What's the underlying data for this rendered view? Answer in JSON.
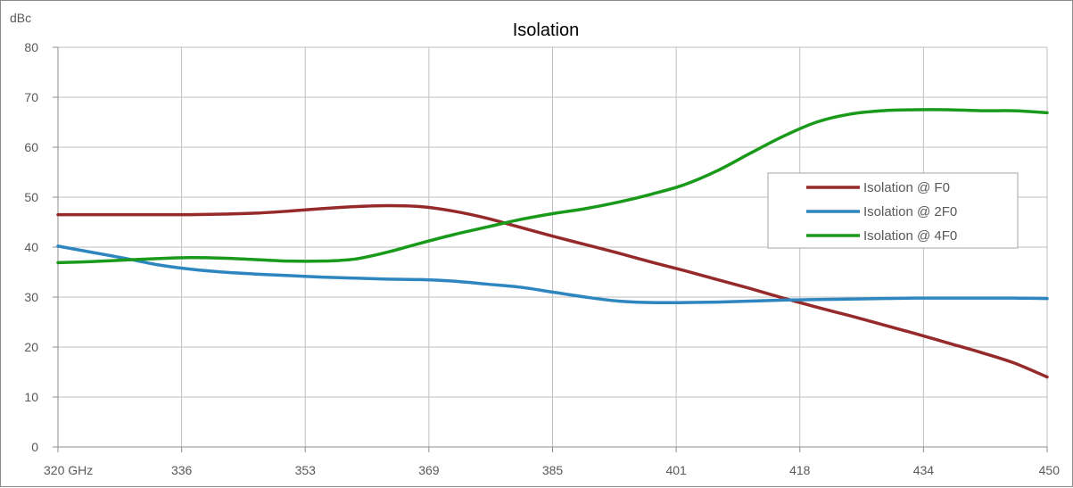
{
  "chart_data": {
    "type": "line",
    "title": "Isolation",
    "ylabel": "dBc",
    "xlabel": "",
    "ylim": [
      0,
      80
    ],
    "y_ticks": [
      "0",
      "10",
      "20",
      "30",
      "40",
      "50",
      "60",
      "70",
      "80"
    ],
    "x_ticks": [
      "320  GHz",
      "336",
      "353",
      "369",
      "385",
      "401",
      "418",
      "434",
      "450"
    ],
    "grid": true,
    "legend_position": "right, upper-middle",
    "series": [
      {
        "name": "Isolation @ F0",
        "color": "#962a2a",
        "values": [
          46.5,
          46.5,
          46.5,
          46.5,
          46.5,
          46.6,
          46.8,
          47.2,
          47.7,
          48.1,
          48.3,
          48.1,
          47.2,
          45.8,
          44.0,
          42.2,
          40.5,
          38.8,
          37.0,
          35.3,
          33.5,
          31.7,
          29.8,
          28.0,
          26.3,
          24.5,
          22.7,
          20.8,
          18.9,
          16.8,
          14.0
        ]
      },
      {
        "name": "Isolation @ 2F0",
        "color": "#2e86c1",
        "values": [
          40.2,
          39.0,
          37.8,
          36.5,
          35.6,
          35.0,
          34.6,
          34.3,
          34.0,
          33.8,
          33.6,
          33.5,
          33.2,
          32.6,
          32.0,
          31.0,
          30.0,
          29.2,
          28.9,
          28.9,
          29.0,
          29.2,
          29.4,
          29.5,
          29.6,
          29.7,
          29.8,
          29.8,
          29.8,
          29.8,
          29.7
        ]
      },
      {
        "name": "Isolation @ 4F0",
        "color": "#1a9a1a",
        "values": [
          36.9,
          37.1,
          37.4,
          37.7,
          37.9,
          37.8,
          37.5,
          37.2,
          37.2,
          37.6,
          39.0,
          40.8,
          42.5,
          44.0,
          45.5,
          46.7,
          47.7,
          49.0,
          50.6,
          52.5,
          55.3,
          58.8,
          62.2,
          65.0,
          66.6,
          67.3,
          67.5,
          67.5,
          67.3,
          67.3,
          66.9
        ]
      }
    ]
  }
}
